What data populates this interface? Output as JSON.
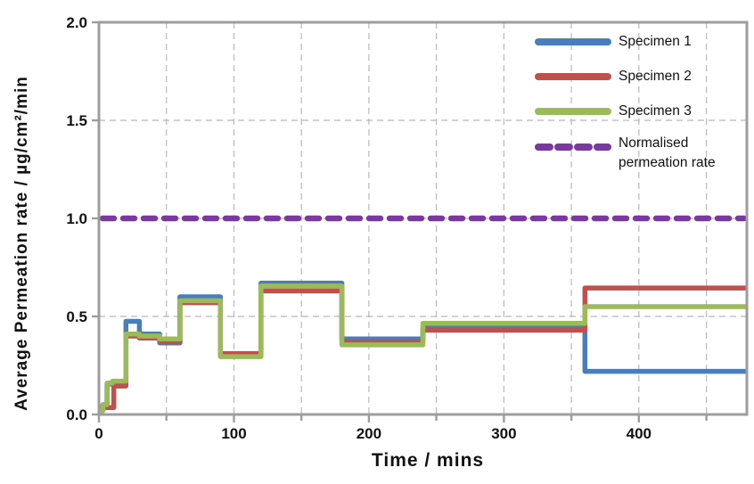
{
  "chart_data": {
    "type": "line",
    "subtype": "step",
    "title": "",
    "xlabel": "Time / mins",
    "ylabel": "Average Permeation rate / µg/cm²/min",
    "xlim": [
      0,
      480
    ],
    "ylim": [
      0.0,
      2.0
    ],
    "x_ticks": [
      {
        "label": "0",
        "value": 0
      },
      {
        "label": "100",
        "value": 100
      },
      {
        "label": "200",
        "value": 200
      },
      {
        "label": "300",
        "value": 300
      },
      {
        "label": "400",
        "value": 400
      }
    ],
    "x_minor_ticks": [
      50,
      150,
      250,
      350,
      450
    ],
    "y_ticks": [
      {
        "label": "0.0",
        "value": 0.0
      },
      {
        "label": "0.5",
        "value": 0.5
      },
      {
        "label": "1.0",
        "value": 1.0
      },
      {
        "label": "1.5",
        "value": 1.5
      },
      {
        "label": "2.0",
        "value": 2.0
      }
    ],
    "grid": {
      "vertical_every_mins": 50,
      "horizontal_every_units": 0.5,
      "style": "dashed"
    },
    "legend_position": "top-right-inside",
    "colors": {
      "axis": "#9d9d9d",
      "grid": "#b8b8b8",
      "text": "#111111"
    },
    "series": [
      {
        "name": "Specimen 1",
        "color": "#4a7ebb",
        "style": "solid",
        "end_x": 480,
        "step_points": [
          [
            0,
            0.02
          ],
          [
            3,
            0.05
          ],
          [
            6,
            0.155
          ],
          [
            10,
            0.165
          ],
          [
            20,
            0.475
          ],
          [
            30,
            0.41
          ],
          [
            45,
            0.365
          ],
          [
            60,
            0.6
          ],
          [
            90,
            0.3
          ],
          [
            120,
            0.67
          ],
          [
            180,
            0.385
          ],
          [
            240,
            0.44
          ],
          [
            360,
            0.22
          ]
        ]
      },
      {
        "name": "Specimen 2",
        "color": "#c0504d",
        "style": "solid",
        "end_x": 480,
        "step_points": [
          [
            0,
            0.035
          ],
          [
            11,
            0.145
          ],
          [
            20,
            0.4
          ],
          [
            30,
            0.39
          ],
          [
            45,
            0.37
          ],
          [
            60,
            0.57
          ],
          [
            90,
            0.31
          ],
          [
            120,
            0.63
          ],
          [
            180,
            0.37
          ],
          [
            240,
            0.43
          ],
          [
            360,
            0.645
          ]
        ]
      },
      {
        "name": "Specimen 3",
        "color": "#9bbb59",
        "style": "solid",
        "end_x": 480,
        "step_points": [
          [
            0,
            0.02
          ],
          [
            3,
            0.05
          ],
          [
            6,
            0.16
          ],
          [
            10,
            0.17
          ],
          [
            20,
            0.41
          ],
          [
            30,
            0.4
          ],
          [
            45,
            0.385
          ],
          [
            60,
            0.58
          ],
          [
            90,
            0.295
          ],
          [
            120,
            0.655
          ],
          [
            180,
            0.355
          ],
          [
            240,
            0.465
          ],
          [
            360,
            0.55
          ]
        ]
      },
      {
        "name": "Normalised permeation rate",
        "color": "#7a38a0",
        "style": "dashed",
        "end_x": 480,
        "step_points": [
          [
            0,
            1.0
          ]
        ]
      }
    ],
    "legend": [
      {
        "label": "Specimen 1",
        "color": "#4a7ebb",
        "dashed": false
      },
      {
        "label": "Specimen 2",
        "color": "#c0504d",
        "dashed": false
      },
      {
        "label": "Specimen 3",
        "color": "#9bbb59",
        "dashed": false
      },
      {
        "label": "Normalised permeation rate",
        "color": "#7a38a0",
        "dashed": true
      }
    ]
  }
}
